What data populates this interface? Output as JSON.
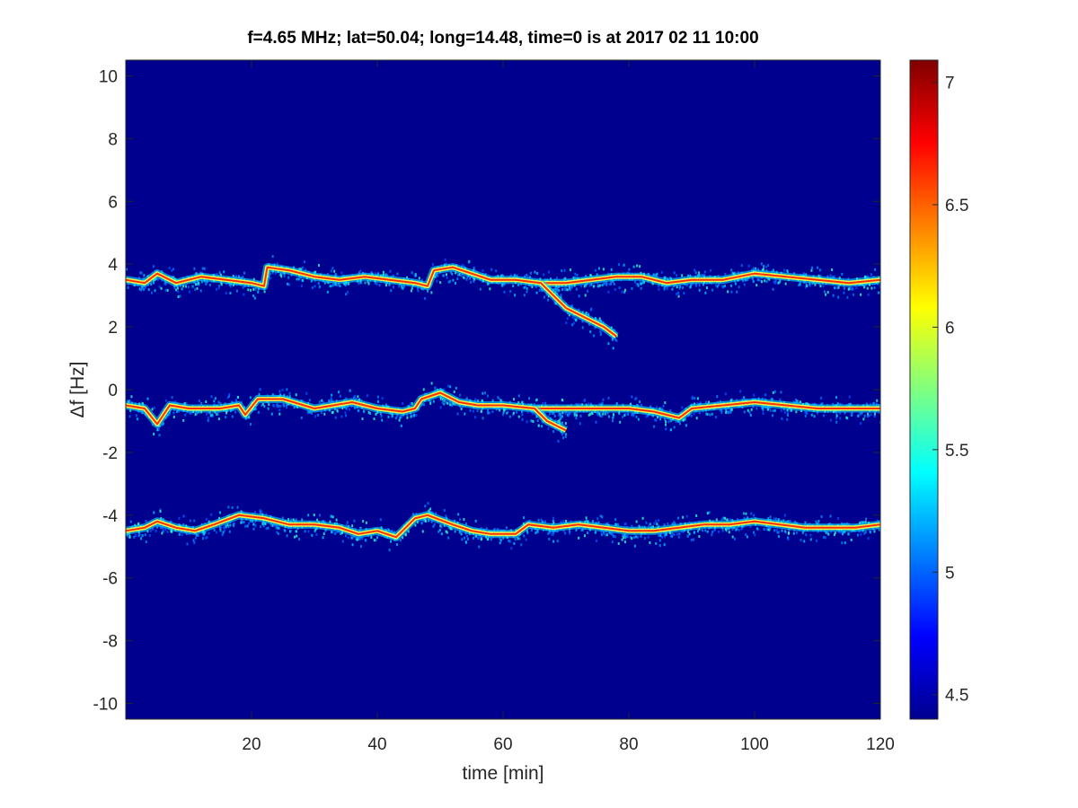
{
  "chart_data": {
    "type": "heatmap",
    "title": "f=4.65 MHz;  lat=50.04; long=14.48, time=0 is at 2017 02 11 10:00",
    "xlabel": "time [min]",
    "ylabel": "Δf [Hz]",
    "xlim": [
      0,
      120
    ],
    "ylim": [
      -10.5,
      10.5
    ],
    "xticks": [
      20,
      40,
      60,
      80,
      100,
      120
    ],
    "yticks": [
      10,
      8,
      6,
      4,
      2,
      0,
      -2,
      -4,
      -6,
      -8,
      -10
    ],
    "colorbar": {
      "clim": [
        4.4,
        7.09
      ],
      "ticks": [
        7,
        6.5,
        6,
        5.5,
        5,
        4.5
      ],
      "colormap": "jet"
    },
    "background_color": "#00008f",
    "series": [
      {
        "name": "trace-upper",
        "points": [
          [
            0,
            3.5
          ],
          [
            3,
            3.4
          ],
          [
            5,
            3.7
          ],
          [
            8,
            3.4
          ],
          [
            12,
            3.6
          ],
          [
            16,
            3.5
          ],
          [
            20,
            3.4
          ],
          [
            22,
            3.3
          ],
          [
            22.5,
            3.9
          ],
          [
            26,
            3.8
          ],
          [
            30,
            3.6
          ],
          [
            34,
            3.5
          ],
          [
            38,
            3.6
          ],
          [
            42,
            3.5
          ],
          [
            46,
            3.4
          ],
          [
            48,
            3.3
          ],
          [
            49,
            3.8
          ],
          [
            52,
            3.9
          ],
          [
            55,
            3.7
          ],
          [
            58,
            3.5
          ],
          [
            62,
            3.5
          ],
          [
            66,
            3.4
          ],
          [
            70,
            3.4
          ],
          [
            74,
            3.5
          ],
          [
            78,
            3.6
          ],
          [
            82,
            3.6
          ],
          [
            86,
            3.4
          ],
          [
            90,
            3.5
          ],
          [
            95,
            3.5
          ],
          [
            100,
            3.7
          ],
          [
            105,
            3.6
          ],
          [
            110,
            3.5
          ],
          [
            115,
            3.4
          ],
          [
            120,
            3.5
          ]
        ]
      },
      {
        "name": "trace-upper-branch",
        "points": [
          [
            66,
            3.4
          ],
          [
            68,
            3.0
          ],
          [
            70,
            2.6
          ],
          [
            73,
            2.3
          ],
          [
            76,
            2.0
          ],
          [
            78,
            1.7
          ]
        ]
      },
      {
        "name": "trace-middle",
        "points": [
          [
            0,
            -0.5
          ],
          [
            3,
            -0.6
          ],
          [
            5,
            -1.1
          ],
          [
            7,
            -0.5
          ],
          [
            10,
            -0.6
          ],
          [
            15,
            -0.6
          ],
          [
            18,
            -0.5
          ],
          [
            19,
            -0.8
          ],
          [
            21,
            -0.3
          ],
          [
            25,
            -0.3
          ],
          [
            30,
            -0.6
          ],
          [
            33,
            -0.5
          ],
          [
            36,
            -0.4
          ],
          [
            40,
            -0.6
          ],
          [
            44,
            -0.7
          ],
          [
            46,
            -0.6
          ],
          [
            47,
            -0.3
          ],
          [
            50,
            -0.1
          ],
          [
            53,
            -0.4
          ],
          [
            56,
            -0.5
          ],
          [
            60,
            -0.5
          ],
          [
            65,
            -0.6
          ],
          [
            70,
            -0.6
          ],
          [
            75,
            -0.6
          ],
          [
            80,
            -0.6
          ],
          [
            84,
            -0.7
          ],
          [
            88,
            -0.9
          ],
          [
            90,
            -0.6
          ],
          [
            95,
            -0.5
          ],
          [
            100,
            -0.4
          ],
          [
            105,
            -0.5
          ],
          [
            110,
            -0.6
          ],
          [
            115,
            -0.6
          ],
          [
            120,
            -0.6
          ]
        ]
      },
      {
        "name": "trace-middle-branch",
        "points": [
          [
            65,
            -0.6
          ],
          [
            67,
            -1.0
          ],
          [
            70,
            -1.3
          ]
        ]
      },
      {
        "name": "trace-lower",
        "points": [
          [
            0,
            -4.5
          ],
          [
            3,
            -4.4
          ],
          [
            5,
            -4.2
          ],
          [
            8,
            -4.4
          ],
          [
            11,
            -4.5
          ],
          [
            14,
            -4.3
          ],
          [
            18,
            -4.0
          ],
          [
            22,
            -4.1
          ],
          [
            26,
            -4.3
          ],
          [
            30,
            -4.3
          ],
          [
            34,
            -4.4
          ],
          [
            37,
            -4.6
          ],
          [
            40,
            -4.5
          ],
          [
            43,
            -4.7
          ],
          [
            46,
            -4.1
          ],
          [
            48,
            -4.0
          ],
          [
            52,
            -4.3
          ],
          [
            55,
            -4.5
          ],
          [
            58,
            -4.6
          ],
          [
            62,
            -4.6
          ],
          [
            64,
            -4.3
          ],
          [
            68,
            -4.4
          ],
          [
            72,
            -4.3
          ],
          [
            76,
            -4.4
          ],
          [
            80,
            -4.5
          ],
          [
            84,
            -4.5
          ],
          [
            88,
            -4.4
          ],
          [
            92,
            -4.3
          ],
          [
            96,
            -4.3
          ],
          [
            100,
            -4.2
          ],
          [
            104,
            -4.3
          ],
          [
            108,
            -4.4
          ],
          [
            112,
            -4.4
          ],
          [
            116,
            -4.4
          ],
          [
            120,
            -4.3
          ]
        ]
      }
    ]
  }
}
